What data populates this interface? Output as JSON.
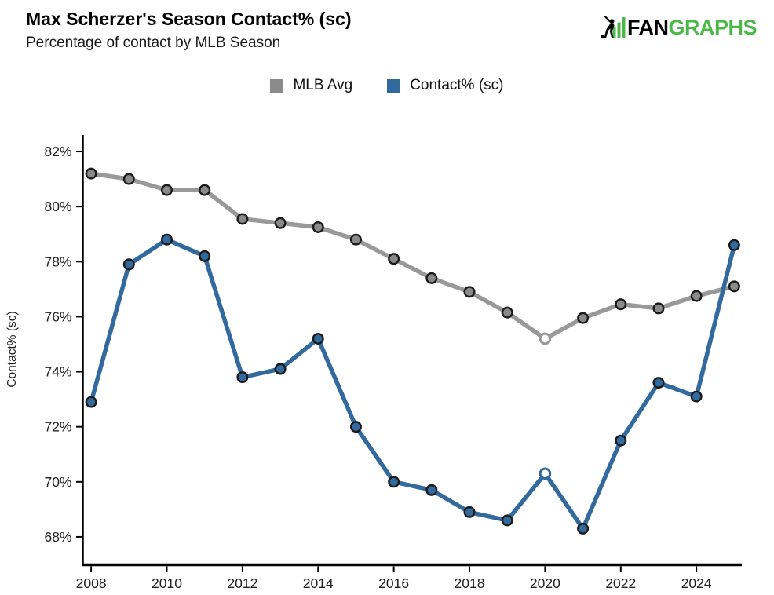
{
  "header": {
    "title": "Max Scherzer's Season Contact% (sc)",
    "subtitle": "Percentage of contact by MLB Season",
    "logo": {
      "fan": "FAN",
      "graphs": "GRAPHS",
      "green": "#4CB848",
      "black": "#000000"
    }
  },
  "legend": [
    {
      "label": "MLB Avg",
      "color": "#8A8A8A"
    },
    {
      "label": "Contact% (sc)",
      "color": "#336A9E"
    }
  ],
  "chart_data": {
    "type": "line",
    "title": "Max Scherzer's Season Contact% (sc)",
    "subtitle": "Percentage of contact by MLB Season",
    "xlabel": "",
    "ylabel": "Contact% (sc)",
    "x": [
      2008,
      2009,
      2010,
      2011,
      2012,
      2013,
      2014,
      2015,
      2016,
      2017,
      2018,
      2019,
      2020,
      2021,
      2022,
      2023,
      2024,
      2025
    ],
    "series": [
      {
        "name": "MLB Avg",
        "line_color": "#999999",
        "marker_fill": "#8A8A8A",
        "values": [
          81.2,
          81.0,
          80.6,
          80.6,
          79.55,
          79.4,
          79.25,
          78.8,
          78.1,
          77.4,
          76.9,
          76.15,
          75.2,
          75.95,
          76.45,
          76.3,
          76.75,
          77.1
        ]
      },
      {
        "name": "Contact% (sc)",
        "line_color": "#336A9E",
        "marker_fill": "#336A9E",
        "values": [
          72.9,
          77.9,
          78.8,
          78.2,
          73.8,
          74.1,
          75.2,
          72.0,
          70.0,
          69.7,
          68.9,
          68.6,
          70.3,
          68.3,
          71.5,
          73.6,
          73.1,
          78.6
        ]
      }
    ],
    "open_marker_year": 2020,
    "xticks": [
      2008,
      2010,
      2012,
      2014,
      2016,
      2018,
      2020,
      2022,
      2024
    ],
    "yticks": [
      68,
      70,
      72,
      74,
      76,
      78,
      80,
      82
    ],
    "ytick_labels": [
      "68%",
      "70%",
      "72%",
      "74%",
      "76%",
      "78%",
      "80%",
      "82%"
    ],
    "xlim": [
      2007.78,
      2025.2
    ],
    "ylim": [
      67.0,
      82.6
    ],
    "grid": false,
    "legend_position": "top-center",
    "axis_color": "#000000",
    "tick_label_color": "#222222"
  }
}
